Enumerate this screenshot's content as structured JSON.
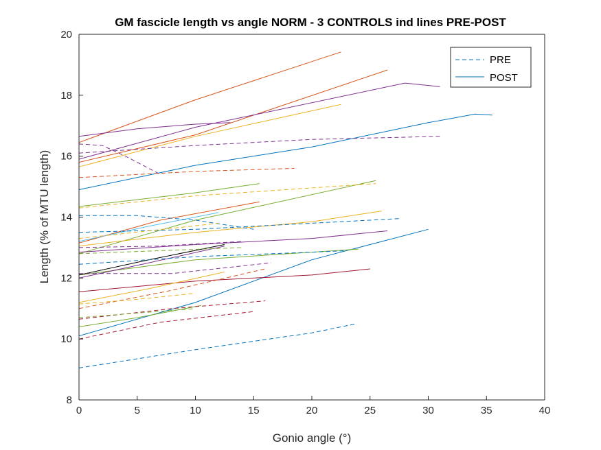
{
  "chart_data": {
    "type": "line",
    "title": "GM fascicle length vs angle NORM - 3 CONTROLS ind lines PRE-POST",
    "xlabel": "Gonio angle (°)",
    "ylabel": "Length (% of MTU length)",
    "xlim": [
      0,
      40
    ],
    "ylim": [
      8,
      20
    ],
    "xticks": [
      0,
      5,
      10,
      15,
      20,
      25,
      30,
      35,
      40
    ],
    "yticks": [
      8,
      10,
      12,
      14,
      16,
      18,
      20
    ],
    "grid": false,
    "legend": {
      "placement": "top-right",
      "entries": [
        {
          "label": "PRE",
          "style": "dashed",
          "color": "#0072BD"
        },
        {
          "label": "POST",
          "style": "solid",
          "color": "#0072BD"
        }
      ]
    },
    "series": [
      {
        "style": "solid",
        "color": "#D95319",
        "x": [
          0,
          10,
          22.5
        ],
        "y": [
          16.45,
          17.85,
          19.42
        ]
      },
      {
        "style": "solid",
        "color": "#D95319",
        "x": [
          0,
          10,
          26.5
        ],
        "y": [
          15.8,
          16.7,
          18.83
        ]
      },
      {
        "style": "solid",
        "color": "#7E2F8E",
        "x": [
          0,
          10,
          28,
          31
        ],
        "y": [
          15.9,
          16.95,
          18.4,
          18.28
        ]
      },
      {
        "style": "solid",
        "color": "#7E2F8E",
        "x": [
          0,
          5,
          10,
          13
        ],
        "y": [
          16.65,
          16.9,
          17.05,
          17.1
        ]
      },
      {
        "style": "solid",
        "color": "#EDB120",
        "x": [
          0,
          10,
          22.5
        ],
        "y": [
          15.65,
          16.65,
          17.7
        ]
      },
      {
        "style": "solid",
        "color": "#0072BD",
        "x": [
          0,
          10,
          20,
          30,
          34,
          35.5
        ],
        "y": [
          14.9,
          15.7,
          16.3,
          17.1,
          17.38,
          17.35
        ]
      },
      {
        "style": "solid",
        "color": "#0072BD",
        "x": [
          0,
          10,
          20,
          30
        ],
        "y": [
          10.1,
          11.2,
          12.6,
          13.6
        ]
      },
      {
        "style": "solid",
        "color": "#77AC30",
        "x": [
          0,
          10,
          15.5
        ],
        "y": [
          14.35,
          14.8,
          15.1
        ]
      },
      {
        "style": "solid",
        "color": "#77AC30",
        "x": [
          0,
          10,
          25.5
        ],
        "y": [
          12.8,
          13.9,
          15.2
        ]
      },
      {
        "style": "solid",
        "color": "#D95319",
        "x": [
          0,
          7,
          15.5
        ],
        "y": [
          13.15,
          13.9,
          14.5
        ]
      },
      {
        "style": "solid",
        "color": "#4DBEEE",
        "x": [
          0,
          6,
          12
        ],
        "y": [
          13.2,
          13.7,
          14.15
        ]
      },
      {
        "style": "solid",
        "color": "#EDB120",
        "x": [
          0,
          10,
          20,
          26
        ],
        "y": [
          13.05,
          13.5,
          13.85,
          14.2
        ]
      },
      {
        "style": "solid",
        "color": "#7E2F8E",
        "x": [
          0,
          10,
          20,
          26.5
        ],
        "y": [
          12.85,
          13.1,
          13.3,
          13.55
        ]
      },
      {
        "style": "solid",
        "color": "#77AC30",
        "x": [
          0,
          10,
          20,
          24
        ],
        "y": [
          12.1,
          12.6,
          12.85,
          12.95
        ]
      },
      {
        "style": "solid",
        "color": "#A2142F",
        "x": [
          0,
          10,
          20,
          25
        ],
        "y": [
          11.55,
          11.9,
          12.1,
          12.3
        ]
      },
      {
        "style": "solid",
        "color": "#7E2F8E",
        "x": [
          0,
          6,
          12.5
        ],
        "y": [
          12.0,
          12.5,
          13.05
        ]
      },
      {
        "style": "solid",
        "color": "#000000",
        "x": [
          0,
          6,
          12.5
        ],
        "y": [
          12.1,
          12.6,
          13.1
        ]
      },
      {
        "style": "solid",
        "color": "#EDB120",
        "x": [
          0,
          6,
          12.5
        ],
        "y": [
          11.2,
          11.65,
          12.2
        ]
      },
      {
        "style": "solid",
        "color": "#77AC30",
        "x": [
          0,
          5,
          10.5
        ],
        "y": [
          10.4,
          10.7,
          11.1
        ]
      },
      {
        "style": "dashed",
        "color": "#0072BD",
        "x": [
          0,
          10,
          20,
          23.8
        ],
        "y": [
          9.05,
          9.65,
          10.2,
          10.5
        ]
      },
      {
        "style": "dashed",
        "color": "#7E2F8E",
        "x": [
          0,
          10,
          20,
          31
        ],
        "y": [
          16.1,
          16.35,
          16.55,
          16.65
        ]
      },
      {
        "style": "dashed",
        "color": "#7E2F8E",
        "x": [
          0,
          2,
          4,
          7
        ],
        "y": [
          16.4,
          16.35,
          16.0,
          15.4
        ]
      },
      {
        "style": "dashed",
        "color": "#D95319",
        "x": [
          0,
          10,
          18.5
        ],
        "y": [
          15.3,
          15.5,
          15.6
        ]
      },
      {
        "style": "dashed",
        "color": "#EDB120",
        "x": [
          0,
          10,
          25.5
        ],
        "y": [
          14.3,
          14.7,
          15.1
        ]
      },
      {
        "style": "dashed",
        "color": "#0072BD",
        "x": [
          0,
          10,
          20,
          27.5
        ],
        "y": [
          13.5,
          13.6,
          13.8,
          13.95
        ]
      },
      {
        "style": "dashed",
        "color": "#0072BD",
        "x": [
          0,
          5,
          10,
          15
        ],
        "y": [
          14.05,
          14.05,
          13.9,
          13.6
        ]
      },
      {
        "style": "dashed",
        "color": "#EDB120",
        "x": [
          0,
          6,
          12
        ],
        "y": [
          13.3,
          13.55,
          13.8
        ]
      },
      {
        "style": "dashed",
        "color": "#7E2F8E",
        "x": [
          0,
          7,
          14
        ],
        "y": [
          13.0,
          13.05,
          13.2
        ]
      },
      {
        "style": "dashed",
        "color": "#77AC30",
        "x": [
          0,
          7,
          14
        ],
        "y": [
          12.8,
          12.9,
          13.0
        ]
      },
      {
        "style": "dashed",
        "color": "#0072BD",
        "x": [
          0,
          10,
          20,
          23
        ],
        "y": [
          12.45,
          12.7,
          12.85,
          12.9
        ]
      },
      {
        "style": "dashed",
        "color": "#7E2F8E",
        "x": [
          0,
          8,
          16.5
        ],
        "y": [
          12.15,
          12.15,
          12.5
        ]
      },
      {
        "style": "dashed",
        "color": "#D95319",
        "x": [
          0,
          8,
          16
        ],
        "y": [
          11.0,
          11.6,
          12.3
        ]
      },
      {
        "style": "dashed",
        "color": "#A2142F",
        "x": [
          0,
          8,
          16
        ],
        "y": [
          10.65,
          11.0,
          11.25
        ]
      },
      {
        "style": "dashed",
        "color": "#A2142F",
        "x": [
          0,
          7,
          15
        ],
        "y": [
          10.0,
          10.55,
          10.9
        ]
      },
      {
        "style": "dashed",
        "color": "#EDB120",
        "x": [
          0,
          5,
          10
        ],
        "y": [
          11.15,
          11.3,
          11.5
        ]
      },
      {
        "style": "dashed",
        "color": "#77AC30",
        "x": [
          0,
          5,
          10
        ],
        "y": [
          10.7,
          10.85,
          11.0
        ]
      }
    ]
  }
}
